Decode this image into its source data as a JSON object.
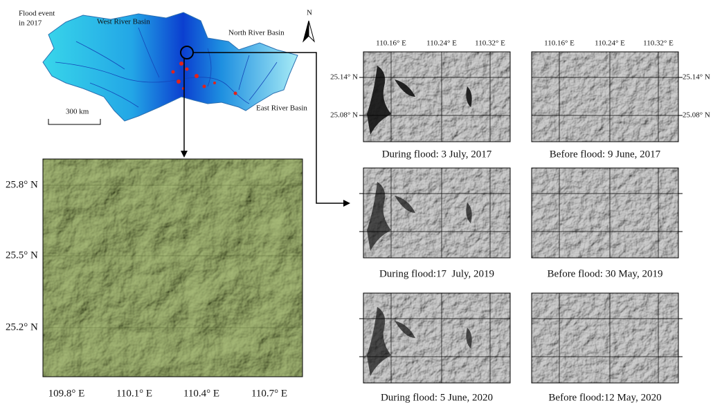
{
  "basin_map": {
    "flood_event": [
      "Flood event",
      "in 2017"
    ],
    "west_label": "West River Basin",
    "north_label": "North River Basin",
    "east_label": "East River Basin",
    "scale_label": "300 km",
    "north": "N"
  },
  "dem_map": {
    "lat_labels": [
      "25.8° N",
      "25.5° N",
      "25.2° N"
    ],
    "lon_labels": [
      "109.8° E",
      "110.1° E",
      "110.4° E",
      "110.7° E"
    ]
  },
  "sar_panels": {
    "lon_labels": [
      "110.16° E",
      "110.24° E",
      "110.32° E"
    ],
    "lat_labels": [
      "25.14° N",
      "25.08° N"
    ],
    "captions": [
      "During flood: 3 July, 2017",
      "Before flood: 9 June, 2017",
      "During flood:17  July, 2019",
      "Before flood: 30 May, 2019",
      "During flood: 5 June, 2020",
      "Before flood:12 May, 2020"
    ]
  }
}
